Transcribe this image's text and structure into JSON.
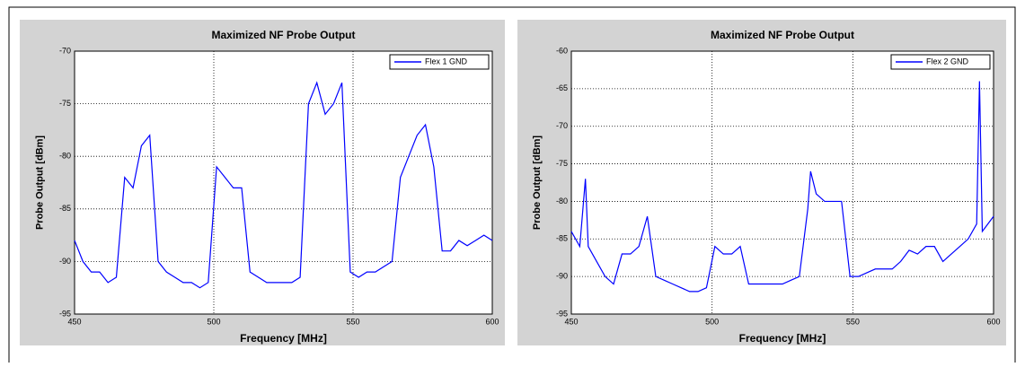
{
  "chart_data": [
    {
      "type": "line",
      "title": "Maximized NF Probe Output",
      "x_label": "Frequency [MHz]",
      "y_label": "Probe Output [dBm]",
      "x": [
        450,
        453,
        456,
        459,
        462,
        465,
        468,
        471,
        474,
        477,
        480,
        483,
        486,
        489,
        492,
        495,
        498,
        501,
        504,
        507,
        510,
        513,
        516,
        519,
        522,
        525,
        528,
        531,
        534,
        537,
        540,
        543,
        546,
        549,
        552,
        555,
        558,
        561,
        564,
        567,
        570,
        573,
        576,
        579,
        582,
        585,
        588,
        591,
        594,
        597,
        600
      ],
      "series": [
        {
          "name": "Flex 1 GND",
          "color": "#0000ff",
          "values": [
            -88,
            -90,
            -91,
            -91,
            -92,
            -91.5,
            -82,
            -83,
            -79,
            -78,
            -90,
            -91,
            -91.5,
            -92,
            -92,
            -92.5,
            -92,
            -81,
            -82,
            -83,
            -83,
            -91,
            -91.5,
            -92,
            -92,
            -92,
            -92,
            -91.5,
            -75,
            -73,
            -76,
            -75,
            -73,
            -91,
            -91.5,
            -91,
            -91,
            -90.5,
            -90,
            -82,
            -80,
            -78,
            -77,
            -81,
            -89,
            -89,
            -88,
            -88.5,
            -88,
            -87.5,
            -88
          ]
        }
      ],
      "xlim": [
        450,
        600
      ],
      "xticks": [
        450,
        500,
        550,
        600
      ],
      "ylim": [
        -95,
        -70
      ],
      "yticks": [
        -95,
        -90,
        -85,
        -80,
        -75,
        -70
      ],
      "grid": true,
      "legend": "upper right"
    },
    {
      "type": "line",
      "title": "Maximized NF Probe Output",
      "x_label": "Frequency [MHz]",
      "y_label": "Probe Output [dBm]",
      "x": [
        450,
        453,
        455,
        456,
        459,
        462,
        465,
        468,
        471,
        474,
        477,
        480,
        483,
        486,
        489,
        492,
        495,
        498,
        501,
        504,
        507,
        510,
        513,
        516,
        519,
        522,
        525,
        528,
        531,
        534,
        535,
        537,
        540,
        543,
        546,
        549,
        552,
        555,
        558,
        561,
        564,
        567,
        570,
        573,
        576,
        579,
        582,
        585,
        588,
        591,
        594,
        595,
        596,
        598,
        600
      ],
      "series": [
        {
          "name": "Flex 2 GND",
          "color": "#0000ff",
          "values": [
            -84,
            -86,
            -77,
            -86,
            -88,
            -90,
            -91,
            -87,
            -87,
            -86,
            -82,
            -90,
            -90.5,
            -91,
            -91.5,
            -92,
            -92,
            -91.5,
            -86,
            -87,
            -87,
            -86,
            -91,
            -91,
            -91,
            -91,
            -91,
            -90.5,
            -90,
            -81,
            -76,
            -79,
            -80,
            -80,
            -80,
            -90,
            -90,
            -89.5,
            -89,
            -89,
            -89,
            -88,
            -86.5,
            -87,
            -86,
            -86,
            -88,
            -87,
            -86,
            -85,
            -83,
            -64,
            -84,
            -83,
            -82
          ]
        }
      ],
      "xlim": [
        450,
        600
      ],
      "xticks": [
        450,
        500,
        550,
        600
      ],
      "ylim": [
        -95,
        -60
      ],
      "yticks": [
        -95,
        -90,
        -85,
        -80,
        -75,
        -70,
        -65,
        -60
      ],
      "grid": true,
      "legend": "upper right"
    }
  ]
}
